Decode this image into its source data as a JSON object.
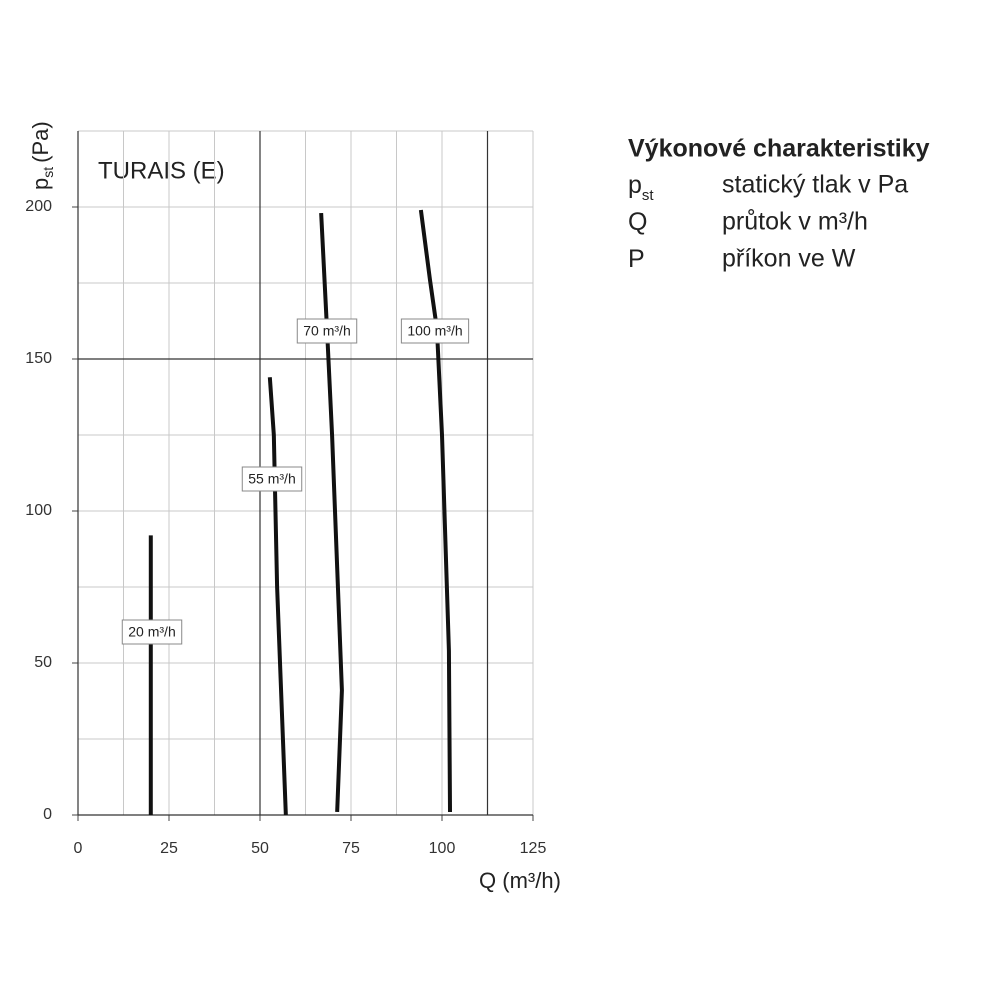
{
  "chart_data": {
    "type": "line",
    "title": "TURAIS (E)",
    "x_label": "Q (m³/h)",
    "y_label": {
      "main": "p",
      "sub": "st",
      "unit": "(Pa)"
    },
    "xlim": [
      0,
      125
    ],
    "ylim": [
      0,
      225
    ],
    "xticks": [
      0,
      25,
      50,
      75,
      100,
      125
    ],
    "yticks": [
      0,
      50,
      100,
      150,
      200
    ],
    "x_minor_ticks": [
      12.5,
      37.5,
      62.5,
      87.5,
      112.5
    ],
    "y_minor_ticks": [
      25,
      75,
      125,
      175,
      225
    ],
    "x_major_grid": [
      50,
      112.5
    ],
    "y_major_grid": [
      150
    ],
    "grid": true,
    "series": [
      {
        "name": "20 m³/h",
        "color": "#111111",
        "x": [
          20,
          20
        ],
        "values": [
          0,
          92
        ]
      },
      {
        "name": "55 m³/h",
        "color": "#111111",
        "x": [
          57.1,
          56.3,
          54.7,
          53.8,
          52.7
        ],
        "values": [
          0,
          25,
          75,
          125,
          144
        ]
      },
      {
        "name": "70 m³/h",
        "color": "#111111",
        "x": [
          71.2,
          72.5,
          69.8,
          68.4,
          66.8
        ],
        "values": [
          1,
          41,
          125,
          160,
          198
        ]
      },
      {
        "name": "100 m³/h",
        "color": "#111111",
        "x": [
          102.2,
          101.9,
          100,
          98.6,
          96.7,
          94.2
        ],
        "values": [
          1,
          54,
          125,
          160,
          176,
          199
        ]
      }
    ],
    "key": {
      "title": "Výkonové charakteristiky",
      "rows": [
        {
          "symbol": "p",
          "sub": "st",
          "text": "statický tlak v Pa"
        },
        {
          "symbol": "Q",
          "text": "průtok v m³/h"
        },
        {
          "symbol": "P",
          "text": "příkon ve W"
        }
      ]
    }
  }
}
